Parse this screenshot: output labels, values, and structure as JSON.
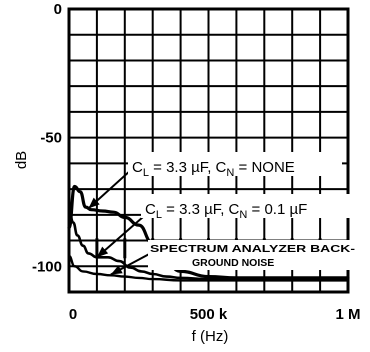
{
  "chart_data": {
    "type": "line",
    "xlabel": "f (Hz)",
    "ylabel": "dB",
    "xlim": [
      0,
      1000000
    ],
    "ylim": [
      -110,
      0
    ],
    "x_ticks": [
      {
        "value": 0,
        "label": "0"
      },
      {
        "value": 500000,
        "label": "500 k"
      },
      {
        "value": 1000000,
        "label": "1 M"
      }
    ],
    "y_ticks": [
      {
        "value": 0,
        "label": "0"
      },
      {
        "value": -50,
        "label": "-50"
      },
      {
        "value": -100,
        "label": "-100"
      }
    ],
    "grid": true,
    "series": [
      {
        "name": "CL = 3.3 µF, CN = NONE",
        "line_width": 3.2,
        "x": [
          0,
          20000,
          40000,
          60000,
          80000,
          120000,
          160000,
          200000,
          250000,
          300000,
          350000,
          400000,
          500000,
          600000,
          800000,
          1000000
        ],
        "y": [
          -85,
          -69,
          -71,
          -77,
          -78,
          -78.5,
          -79,
          -81,
          -84,
          -91,
          -99,
          -102,
          -104,
          -104.5,
          -104.5,
          -104.5
        ]
      },
      {
        "name": "CL = 3.3 µF, CN = 0.1 µF",
        "line_width": 2.6,
        "x": [
          0,
          15000,
          30000,
          50000,
          70000,
          100000,
          140000,
          180000,
          220000,
          260000,
          300000,
          350000,
          400000,
          500000,
          700000,
          1000000
        ],
        "y": [
          -78,
          -83,
          -88,
          -92,
          -95,
          -96.5,
          -96.5,
          -98,
          -100.5,
          -102,
          -103,
          -104,
          -104.5,
          -105,
          -105,
          -105
        ]
      },
      {
        "name": "SPECTRUM ANALYZER BACK-GROUND NOISE",
        "line_width": 2.4,
        "x": [
          0,
          20000,
          50000,
          100000,
          150000,
          200000,
          250000,
          300000,
          400000,
          500000,
          700000,
          1000000
        ],
        "y": [
          -96,
          -100,
          -102,
          -103,
          -103.5,
          -104,
          -104.5,
          -105,
          -105.5,
          -105.5,
          -105.5,
          -105.5
        ]
      }
    ],
    "annotations": [
      {
        "main": "C",
        "sub1": "L",
        "mid": " = 3.3 µF, C",
        "sub2": "N",
        "tail": " = NONE"
      },
      {
        "main": "C",
        "sub1": "L",
        "mid": " = 3.3 µF, C",
        "sub2": "N",
        "tail": " = 0.1 µF"
      },
      {
        "line1": "SPECTRUM ANALYZER BACK-",
        "line2": "GROUND NOISE"
      }
    ]
  }
}
